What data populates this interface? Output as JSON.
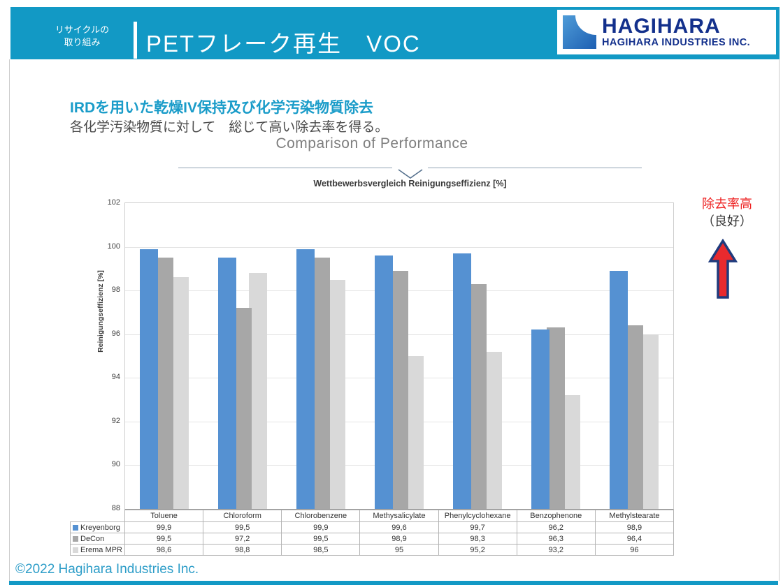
{
  "header": {
    "tab_line1": "リサイクルの",
    "tab_line2": "取り組み",
    "title": "PETフレーク再生　VOC",
    "logo_name": "HAGIHARA",
    "logo_subtitle": "HAGIHARA INDUSTRIES INC."
  },
  "slide": {
    "heading": "IRDを用いた乾燥IV保持及び化学汚染物質除去",
    "subheading": "各化学汚染物質に対して　総じて高い除去率を得る。",
    "annotation_line1": "除去率高",
    "annotation_line2": "（良好）",
    "footer": "©2022 Hagihara Industries Inc."
  },
  "chart_data": {
    "type": "bar",
    "title": "Comparison of Performance",
    "subtitle": "Wettbewerbsvergleich Reinigungseffizienz [%]",
    "ylabel": "Reinigungseffizienz [%]",
    "ylim": [
      88,
      102
    ],
    "ytick_step": 2,
    "grid": true,
    "legend_position": "table-left",
    "categories": [
      "Toluene",
      "Chloroform",
      "Chlorobenzene",
      "Methysalicylate",
      "Phenylcyclohexane",
      "Benzophenone",
      "Methylstearate"
    ],
    "series": [
      {
        "name": "Kreyenborg",
        "color": "#5591d2",
        "values": [
          99.9,
          99.5,
          99.9,
          99.6,
          99.7,
          96.2,
          98.9
        ],
        "labels": [
          "99,9",
          "99,5",
          "99,9",
          "99,6",
          "99,7",
          "96,2",
          "98,9"
        ]
      },
      {
        "name": "DeCon",
        "color": "#a7a7a7",
        "values": [
          99.5,
          97.2,
          99.5,
          98.9,
          98.3,
          96.3,
          96.4
        ],
        "labels": [
          "99,5",
          "97,2",
          "99,5",
          "98,9",
          "98,3",
          "96,3",
          "96,4"
        ]
      },
      {
        "name": "Erema MPR",
        "color": "#d9d9d9",
        "values": [
          98.6,
          98.8,
          98.5,
          95,
          95.2,
          93.2,
          96
        ],
        "labels": [
          "98,6",
          "98,8",
          "98,5",
          "95",
          "95,2",
          "93,2",
          "96"
        ]
      }
    ]
  },
  "colors": {
    "accent_teal": "#1299c5",
    "heading_teal": "#1a9cc9",
    "annotation_red": "#ee2222",
    "arrow_navy": "#1f3b7d",
    "logo_navy": "#13308c"
  }
}
